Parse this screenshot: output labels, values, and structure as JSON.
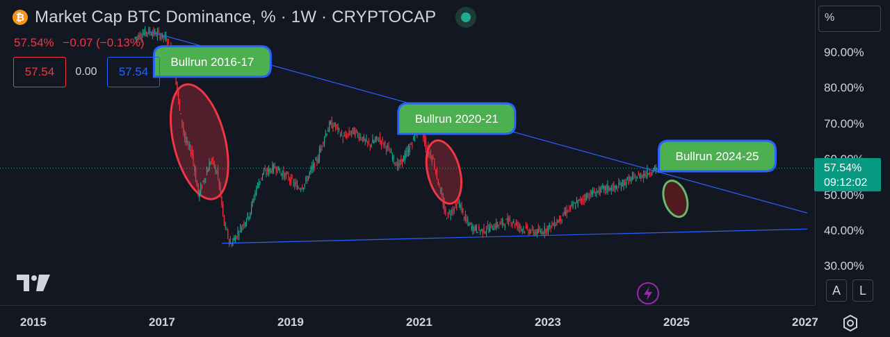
{
  "header": {
    "coin_symbol": "₿",
    "title": "Market Cap BTC Dominance, % · 1W · CRYPTOCAP",
    "price": "57.54%",
    "change": "−0.07 (−0.13%)",
    "sell": "57.54",
    "spread": "0.00",
    "buy": "57.54"
  },
  "price_scale": {
    "mode_label": "%",
    "last_value": "57.54%",
    "countdown": "09:12:02"
  },
  "controls": {
    "auto_label": "A",
    "log_label": "L"
  },
  "icons": {
    "logo": "tradingview-logo-icon",
    "flash": "lightning-icon",
    "settings": "settings-icon",
    "live": "live-indicator-icon"
  },
  "colors": {
    "background": "#131722",
    "up": "#22ab94",
    "down": "#f23645",
    "trendline": "#2962ff",
    "label_green": "#4caf50",
    "label_border": "#2962ff",
    "ellipse_red": "#f23645",
    "ellipse_green": "#66bb6a"
  },
  "chart_data": {
    "type": "candlestick",
    "title": "Market Cap BTC Dominance, % · 1W · CRYPTOCAP",
    "x_ticks": [
      "2015",
      "2017",
      "2019",
      "2021",
      "2023",
      "2025",
      "2027"
    ],
    "y_ticks": [
      "30.00%",
      "40.00%",
      "50.00%",
      "60.00%",
      "70.00%",
      "80.00%",
      "90.00%"
    ],
    "ylim": [
      22,
      105
    ],
    "xlim": [
      2014.6,
      2027.0
    ],
    "y_scale": "linear",
    "grid": false,
    "last_price": 57.54,
    "series": [
      {
        "points": [
          [
            2016.55,
            94.0
          ],
          [
            2016.75,
            96.0
          ],
          [
            2016.95,
            95.0
          ],
          [
            2017.05,
            94.0
          ],
          [
            2017.15,
            90.0
          ],
          [
            2017.25,
            75.0
          ],
          [
            2017.35,
            65.0
          ],
          [
            2017.45,
            62.0
          ],
          [
            2017.55,
            50.0
          ],
          [
            2017.65,
            55.0
          ],
          [
            2017.75,
            60.0
          ],
          [
            2017.85,
            56.0
          ],
          [
            2017.95,
            42.0
          ],
          [
            2018.05,
            36.0
          ],
          [
            2018.15,
            39.0
          ],
          [
            2018.25,
            42.0
          ],
          [
            2018.35,
            45.0
          ],
          [
            2018.45,
            52.0
          ],
          [
            2018.55,
            56.0
          ],
          [
            2018.65,
            57.0
          ],
          [
            2018.75,
            58.0
          ],
          [
            2018.85,
            56.0
          ],
          [
            2018.95,
            55.0
          ],
          [
            2019.1,
            52.0
          ],
          [
            2019.2,
            53.0
          ],
          [
            2019.3,
            57.0
          ],
          [
            2019.4,
            60.0
          ],
          [
            2019.5,
            66.0
          ],
          [
            2019.6,
            70.0
          ],
          [
            2019.7,
            69.0
          ],
          [
            2019.8,
            66.0
          ],
          [
            2019.95,
            68.0
          ],
          [
            2020.1,
            66.0
          ],
          [
            2020.2,
            64.0
          ],
          [
            2020.35,
            66.0
          ],
          [
            2020.5,
            63.0
          ],
          [
            2020.65,
            58.0
          ],
          [
            2020.8,
            62.0
          ],
          [
            2020.9,
            66.0
          ],
          [
            2021.0,
            70.0
          ],
          [
            2021.1,
            63.0
          ],
          [
            2021.2,
            60.0
          ],
          [
            2021.3,
            52.0
          ],
          [
            2021.4,
            44.0
          ],
          [
            2021.5,
            46.0
          ],
          [
            2021.6,
            48.0
          ],
          [
            2021.7,
            43.0
          ],
          [
            2021.8,
            41.0
          ],
          [
            2021.95,
            40.0
          ],
          [
            2022.1,
            41.0
          ],
          [
            2022.25,
            42.0
          ],
          [
            2022.4,
            43.0
          ],
          [
            2022.55,
            41.0
          ],
          [
            2022.7,
            40.0
          ],
          [
            2022.85,
            39.5
          ],
          [
            2023.0,
            41.0
          ],
          [
            2023.15,
            43.0
          ],
          [
            2023.3,
            46.0
          ],
          [
            2023.45,
            48.0
          ],
          [
            2023.6,
            50.0
          ],
          [
            2023.75,
            51.0
          ],
          [
            2023.9,
            52.0
          ],
          [
            2024.05,
            52.0
          ],
          [
            2024.2,
            54.0
          ],
          [
            2024.35,
            55.0
          ],
          [
            2024.5,
            56.0
          ],
          [
            2024.6,
            57.0
          ],
          [
            2024.72,
            57.54
          ]
        ]
      }
    ],
    "annotations": [
      {
        "text": "Bullrun 2016-17",
        "x": 2017.75,
        "y": 87.5
      },
      {
        "text": "Bullrun 2020-21",
        "x": 2021.55,
        "y": 71.5
      },
      {
        "text": "Bullrun 2024-25",
        "x": 2025.6,
        "y": 61.0
      }
    ],
    "highlight_ellipses": [
      {
        "x_from": 2016.75,
        "x_to": 2018.35,
        "y_from": 35.0,
        "y_to": 95.0,
        "color": "red"
      },
      {
        "x_from": 2020.85,
        "x_to": 2021.85,
        "y_from": 40.0,
        "y_to": 73.0,
        "color": "red"
      },
      {
        "x_from": 2024.6,
        "x_to": 2025.3,
        "y_from": 39.5,
        "y_to": 58.5,
        "color": "green"
      }
    ],
    "trendlines": [
      {
        "from": [
          2016.75,
          96.0
        ],
        "to": [
          2027.0,
          45.0
        ]
      },
      {
        "from": [
          2017.9,
          36.5
        ],
        "to": [
          2027.0,
          40.5
        ]
      }
    ]
  }
}
